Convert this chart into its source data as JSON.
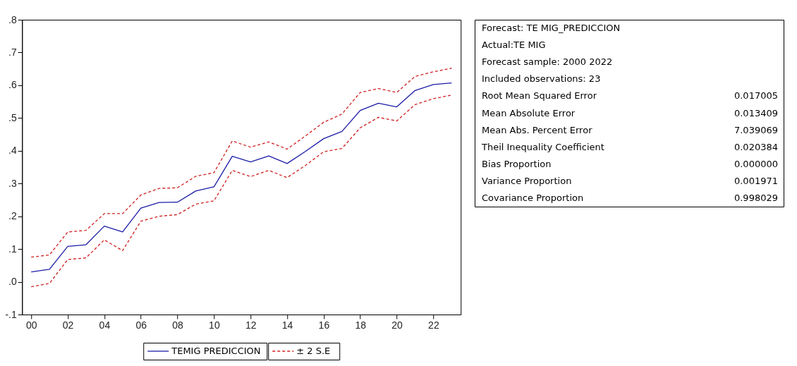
{
  "chart_data": {
    "type": "line",
    "x": [
      2000,
      2001,
      2002,
      2003,
      2004,
      2005,
      2006,
      2007,
      2008,
      2009,
      2010,
      2011,
      2012,
      2013,
      2014,
      2015,
      2016,
      2017,
      2018,
      2019,
      2020,
      2021,
      2022,
      2023
    ],
    "series": [
      {
        "name": "TEMIG PREDICCION",
        "color": "#1c1ca8",
        "line_style": "solid",
        "values": [
          0.03,
          0.038,
          0.108,
          0.113,
          0.17,
          0.152,
          0.225,
          0.242,
          0.243,
          0.277,
          0.29,
          0.383,
          0.366,
          0.384,
          0.361,
          0.398,
          0.437,
          0.459,
          0.523,
          0.545,
          0.534,
          0.584,
          0.602,
          0.607
        ]
      },
      {
        "name": "± 2 S.E",
        "color": "#d02020",
        "line_style": "dashed",
        "values": [
          0.075,
          0.082,
          0.152,
          0.157,
          0.208,
          0.208,
          0.265,
          0.285,
          0.287,
          0.322,
          0.333,
          0.43,
          0.411,
          0.427,
          0.405,
          0.445,
          0.487,
          0.512,
          0.578,
          0.59,
          0.578,
          0.627,
          0.641,
          0.652
        ]
      },
      {
        "color": "#d02020",
        "line_style": "dashed",
        "values": [
          -0.015,
          -0.005,
          0.068,
          0.073,
          0.128,
          0.095,
          0.185,
          0.2,
          0.205,
          0.237,
          0.247,
          0.34,
          0.321,
          0.34,
          0.318,
          0.355,
          0.397,
          0.407,
          0.47,
          0.502,
          0.491,
          0.541,
          0.559,
          0.57
        ]
      }
    ],
    "xlim": [
      1999.5,
      2023.5
    ],
    "xticks": [
      {
        "value": 2000,
        "label": "00"
      },
      {
        "value": 2002,
        "label": "02"
      },
      {
        "value": 2004,
        "label": "04"
      },
      {
        "value": 2006,
        "label": "06"
      },
      {
        "value": 2008,
        "label": "08"
      },
      {
        "value": 2010,
        "label": "10"
      },
      {
        "value": 2012,
        "label": "12"
      },
      {
        "value": 2014,
        "label": "14"
      },
      {
        "value": 2016,
        "label": "16"
      },
      {
        "value": 2018,
        "label": "18"
      },
      {
        "value": 2020,
        "label": "20"
      },
      {
        "value": 2022,
        "label": "22"
      }
    ],
    "ylim": [
      -0.1,
      0.8
    ],
    "yticks": [
      {
        "value": -0.1,
        "label": "-.1"
      },
      {
        "value": 0.0,
        "label": ".0"
      },
      {
        "value": 0.1,
        "label": ".1"
      },
      {
        "value": 0.2,
        "label": ".2"
      },
      {
        "value": 0.3,
        "label": ".3"
      },
      {
        "value": 0.4,
        "label": ".4"
      },
      {
        "value": 0.5,
        "label": ".5"
      },
      {
        "value": 0.6,
        "label": ".6"
      },
      {
        "value": 0.7,
        "label": ".7"
      },
      {
        "value": 0.8,
        "label": ".8"
      }
    ],
    "grid": false,
    "legend": "bottom",
    "marker": "none",
    "annotations": [
      "Forecast: TE MIG_PREDICCION",
      "Actual:TE MIG",
      "Forecast sample: 2000 2022",
      "Included observations: 23",
      "Root Mean Squared Error\t0.017005",
      "Mean Absolute Error\t0.013409",
      "Mean Abs. Percent Error\t7.039069",
      "Theil Inequality Coefficient\t0.020384",
      "Bias Proportion\t0.000000",
      "Variance Proportion\t0.001971",
      "Covariance Proportion\t0.998029"
    ]
  }
}
